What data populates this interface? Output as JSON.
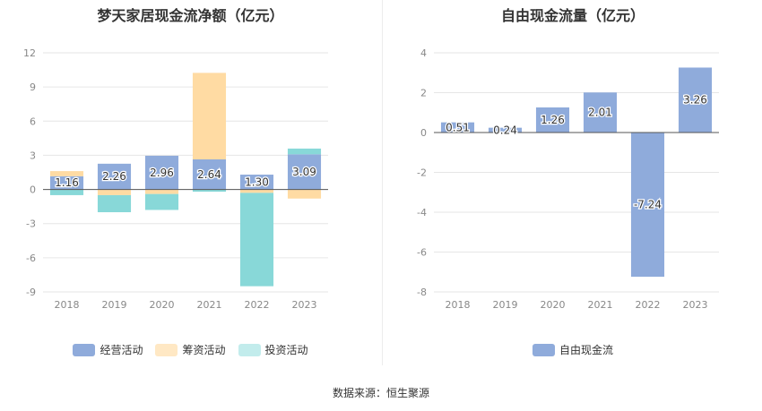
{
  "source": "数据来源：恒生聚源",
  "left_chart": {
    "title": "梦天家居现金流净额（亿元）",
    "legend": [
      "经营活动",
      "筹资活动",
      "投资活动"
    ]
  },
  "right_chart": {
    "title": "自由现金流量（亿元）",
    "legend": [
      "自由现金流"
    ]
  },
  "chart_data": [
    {
      "type": "bar",
      "stacked": true,
      "title": "梦天家居现金流净额（亿元）",
      "categories": [
        "2018",
        "2019",
        "2020",
        "2021",
        "2022",
        "2023"
      ],
      "ylim": [
        -9,
        12
      ],
      "yticks": [
        -9,
        -6,
        -3,
        0,
        3,
        6,
        9,
        12
      ],
      "grid": true,
      "legend_position": "bottom",
      "series": [
        {
          "name": "经营活动",
          "color": "#8fabdb",
          "values": [
            1.16,
            2.26,
            2.96,
            2.64,
            1.3,
            3.09
          ],
          "labels": [
            "1.16",
            "2.26",
            "2.96",
            "2.64",
            "1.30",
            "3.09"
          ]
        },
        {
          "name": "筹资活动",
          "color": "#ffdba3",
          "values": [
            0.45,
            -0.5,
            -0.4,
            7.6,
            -0.3,
            -0.8
          ]
        },
        {
          "name": "投资活动",
          "color": "#88d8d8",
          "values": [
            -0.5,
            -1.5,
            -1.4,
            -0.2,
            -8.2,
            0.5
          ]
        }
      ]
    },
    {
      "type": "bar",
      "title": "自由现金流量（亿元）",
      "categories": [
        "2018",
        "2019",
        "2020",
        "2021",
        "2022",
        "2023"
      ],
      "ylim": [
        -8,
        4
      ],
      "yticks": [
        -8,
        -6,
        -4,
        -2,
        0,
        2,
        4
      ],
      "grid": true,
      "legend_position": "bottom",
      "series": [
        {
          "name": "自由现金流",
          "color": "#8fabdb",
          "values": [
            0.51,
            0.24,
            1.26,
            2.01,
            -7.24,
            3.26
          ],
          "labels": [
            "0.51",
            "0.24",
            "1.26",
            "2.01",
            "-7.24",
            "3.26"
          ]
        }
      ]
    }
  ]
}
